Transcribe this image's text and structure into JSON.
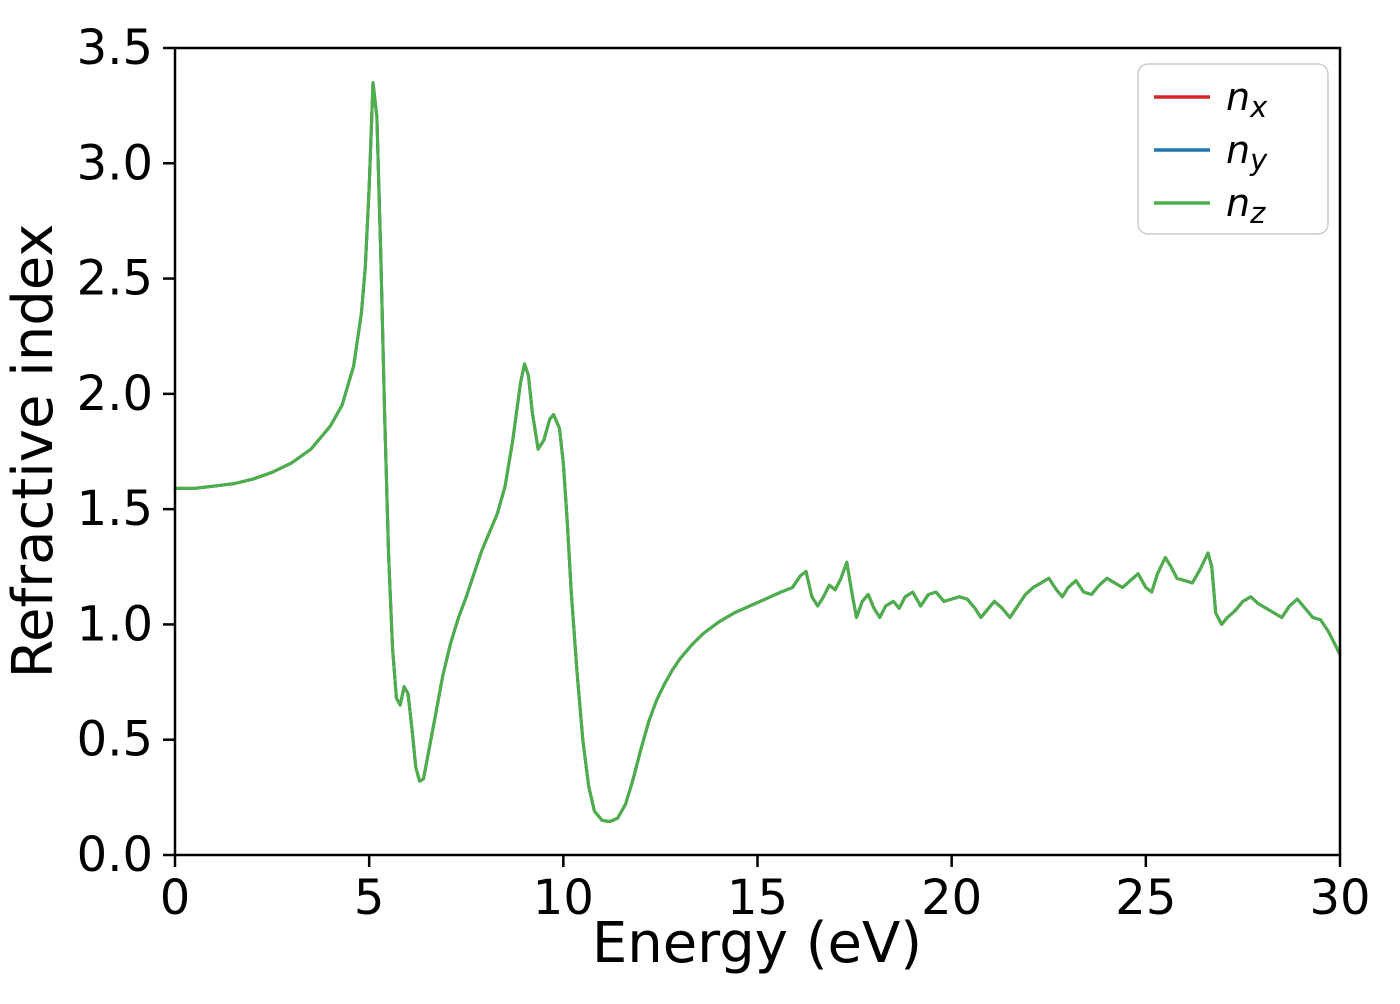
{
  "chart_data": {
    "type": "line",
    "title": "",
    "xlabel": "Energy (eV)",
    "ylabel": "Refractive index",
    "xlim": [
      0,
      30
    ],
    "ylim": [
      0.0,
      3.5
    ],
    "xticks": [
      0,
      5,
      10,
      15,
      20,
      25,
      30
    ],
    "xtick_labels": [
      "0",
      "5",
      "10",
      "15",
      "20",
      "25",
      "30"
    ],
    "yticks": [
      0.0,
      0.5,
      1.0,
      1.5,
      2.0,
      2.5,
      3.0,
      3.5
    ],
    "ytick_labels": [
      "0.0",
      "0.5",
      "1.0",
      "1.5",
      "2.0",
      "2.5",
      "3.0",
      "3.5"
    ],
    "grid": false,
    "legend_position": "upper right",
    "series_overlap": true,
    "x": [
      0,
      0.5,
      1,
      1.5,
      2,
      2.5,
      3,
      3.5,
      4,
      4.3,
      4.6,
      4.8,
      4.9,
      5.0,
      5.1,
      5.2,
      5.3,
      5.4,
      5.5,
      5.6,
      5.7,
      5.8,
      5.9,
      6.0,
      6.1,
      6.2,
      6.3,
      6.4,
      6.5,
      6.7,
      6.9,
      7.1,
      7.3,
      7.5,
      7.7,
      7.9,
      8.1,
      8.3,
      8.5,
      8.7,
      8.9,
      9.0,
      9.1,
      9.2,
      9.35,
      9.5,
      9.65,
      9.75,
      9.9,
      10.0,
      10.1,
      10.2,
      10.35,
      10.5,
      10.65,
      10.8,
      11.0,
      11.2,
      11.4,
      11.6,
      11.8,
      12.0,
      12.2,
      12.4,
      12.6,
      12.8,
      13.0,
      13.3,
      13.6,
      14.0,
      14.4,
      14.8,
      15.2,
      15.6,
      15.9,
      16.1,
      16.25,
      16.4,
      16.55,
      16.7,
      16.85,
      17.0,
      17.15,
      17.3,
      17.45,
      17.55,
      17.7,
      17.85,
      18.0,
      18.15,
      18.3,
      18.5,
      18.65,
      18.8,
      19.0,
      19.2,
      19.4,
      19.6,
      19.8,
      20.0,
      20.2,
      20.4,
      20.6,
      20.75,
      20.9,
      21.1,
      21.3,
      21.5,
      21.7,
      21.9,
      22.1,
      22.3,
      22.5,
      22.7,
      22.85,
      23.0,
      23.2,
      23.4,
      23.6,
      23.8,
      24.0,
      24.2,
      24.4,
      24.6,
      24.8,
      25.0,
      25.15,
      25.3,
      25.5,
      25.65,
      25.8,
      26.0,
      26.2,
      26.4,
      26.6,
      26.7,
      26.8,
      26.95,
      27.1,
      27.3,
      27.5,
      27.7,
      27.9,
      28.1,
      28.3,
      28.5,
      28.7,
      28.9,
      29.1,
      29.3,
      29.5,
      29.7,
      29.85,
      30.0
    ],
    "y": [
      1.59,
      1.59,
      1.6,
      1.61,
      1.63,
      1.66,
      1.7,
      1.76,
      1.86,
      1.95,
      2.12,
      2.35,
      2.55,
      2.9,
      3.35,
      3.2,
      2.6,
      1.9,
      1.3,
      0.9,
      0.68,
      0.65,
      0.73,
      0.7,
      0.55,
      0.38,
      0.32,
      0.33,
      0.42,
      0.6,
      0.78,
      0.92,
      1.03,
      1.12,
      1.22,
      1.32,
      1.4,
      1.48,
      1.6,
      1.8,
      2.05,
      2.13,
      2.08,
      1.92,
      1.76,
      1.8,
      1.89,
      1.91,
      1.85,
      1.7,
      1.45,
      1.15,
      0.8,
      0.5,
      0.3,
      0.19,
      0.15,
      0.145,
      0.16,
      0.22,
      0.33,
      0.46,
      0.58,
      0.67,
      0.74,
      0.8,
      0.85,
      0.91,
      0.96,
      1.01,
      1.05,
      1.08,
      1.11,
      1.14,
      1.16,
      1.21,
      1.23,
      1.12,
      1.08,
      1.12,
      1.17,
      1.15,
      1.2,
      1.27,
      1.12,
      1.03,
      1.1,
      1.13,
      1.07,
      1.03,
      1.08,
      1.1,
      1.07,
      1.12,
      1.14,
      1.08,
      1.13,
      1.14,
      1.1,
      1.11,
      1.12,
      1.11,
      1.07,
      1.03,
      1.06,
      1.1,
      1.07,
      1.03,
      1.08,
      1.13,
      1.16,
      1.18,
      1.2,
      1.15,
      1.12,
      1.16,
      1.19,
      1.14,
      1.13,
      1.17,
      1.2,
      1.18,
      1.16,
      1.19,
      1.22,
      1.16,
      1.14,
      1.22,
      1.29,
      1.25,
      1.2,
      1.19,
      1.18,
      1.24,
      1.31,
      1.25,
      1.05,
      1.0,
      1.03,
      1.06,
      1.1,
      1.12,
      1.09,
      1.07,
      1.05,
      1.03,
      1.08,
      1.11,
      1.07,
      1.03,
      1.02,
      0.97,
      0.92,
      0.87
    ],
    "series": [
      {
        "id": "nx",
        "label_main": "n",
        "label_sub": "x",
        "color": "#d62728"
      },
      {
        "id": "ny",
        "label_main": "n",
        "label_sub": "y",
        "color": "#1f77b4"
      },
      {
        "id": "nz",
        "label_main": "n",
        "label_sub": "z",
        "color": "#4daf4a"
      }
    ]
  },
  "style": {
    "axis_color": "#000000",
    "background_color": "#ffffff",
    "legend_border_color": "#cccccc",
    "legend_fill_color": "#ffffff"
  }
}
